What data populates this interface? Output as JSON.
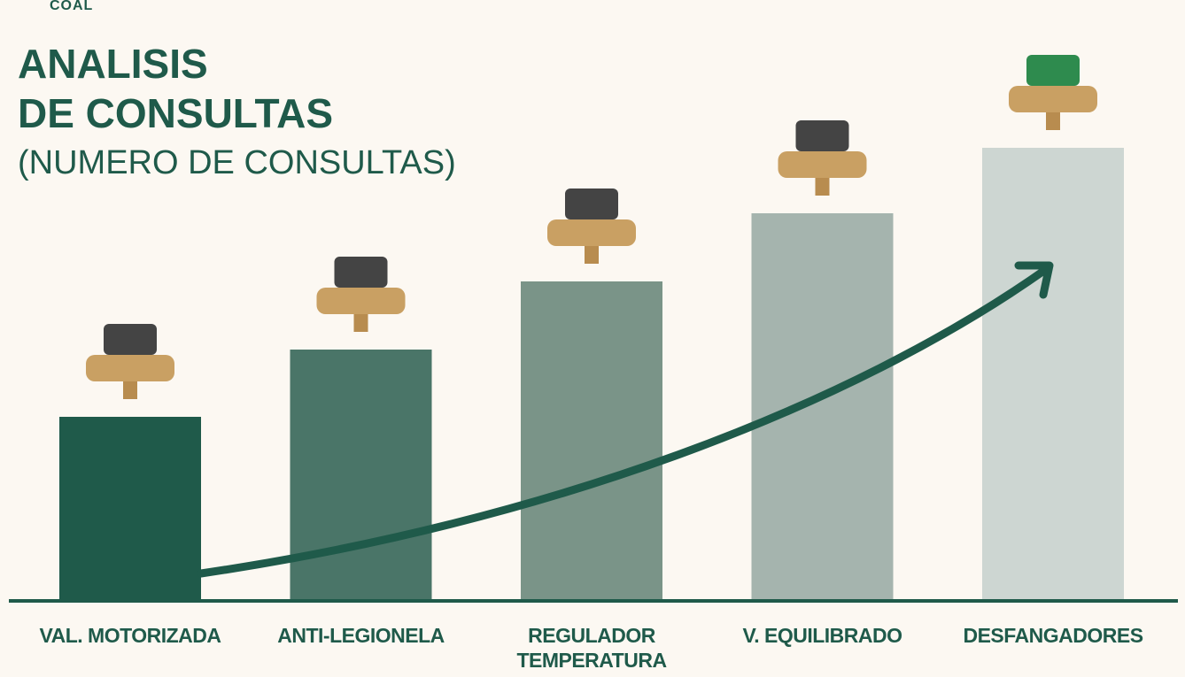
{
  "header": {
    "logo": "COAL"
  },
  "chart_data": {
    "type": "bar",
    "title": [
      "ANALISIS",
      "DE CONSULTAS"
    ],
    "subtitle": "(NUMERO DE CONSULTAS)",
    "categories": [
      "VAL. MOTORIZADA",
      "ANTI-LEGIONELA",
      "REGULADOR TEMPERATURA",
      "V. EQUILIBRADO",
      "DESFANGADORES"
    ],
    "values": [
      206,
      282,
      359,
      436,
      510
    ],
    "colors": [
      "#1f5a4a",
      "#4a7568",
      "#7a9488",
      "#a5b4ae",
      "#cdd6d2"
    ]
  }
}
